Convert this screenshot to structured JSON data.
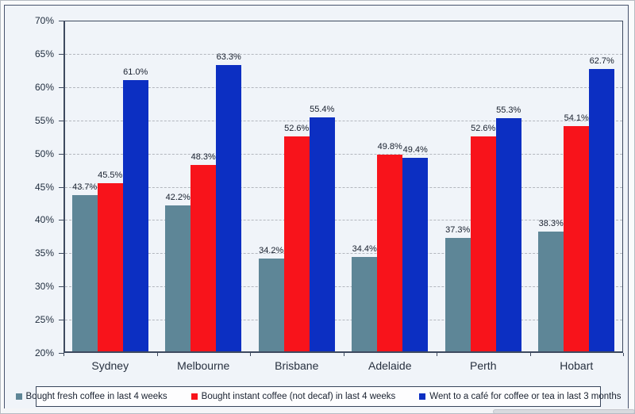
{
  "chart_data": {
    "type": "bar",
    "categories": [
      "Sydney",
      "Melbourne",
      "Brisbane",
      "Adelaide",
      "Perth",
      "Hobart"
    ],
    "series": [
      {
        "name": "Bought fresh coffee in last 4 weeks",
        "color": "#5E8697",
        "values": [
          43.7,
          42.2,
          34.2,
          34.4,
          37.3,
          38.3
        ]
      },
      {
        "name": "Bought instant coffee (not decaf) in last 4 weeks",
        "color": "#F8131B",
        "values": [
          45.5,
          48.3,
          52.6,
          49.8,
          52.6,
          54.1
        ]
      },
      {
        "name": "Went to a café for coffee or tea in last 3 months",
        "color": "#0C2FC2",
        "values": [
          61.0,
          63.3,
          55.4,
          49.4,
          55.3,
          62.7
        ]
      }
    ],
    "title": "",
    "xlabel": "",
    "ylabel": "",
    "ylim": [
      20,
      70
    ],
    "ytick_step": 5,
    "ytick_labels": [
      "20%",
      "25%",
      "30%",
      "35%",
      "40%",
      "45%",
      "50%",
      "55%",
      "60%",
      "65%",
      "70%"
    ],
    "value_label_suffix": "%",
    "value_label_decimals": 1,
    "grid": "horizontal-dashed",
    "legend_position": "bottom"
  },
  "theme": {
    "chart_background": "#f0f4f9",
    "axis_color": "#3e4a5f",
    "gridline_color": "#b3b7be",
    "legend_background": "#fdfdfe"
  }
}
